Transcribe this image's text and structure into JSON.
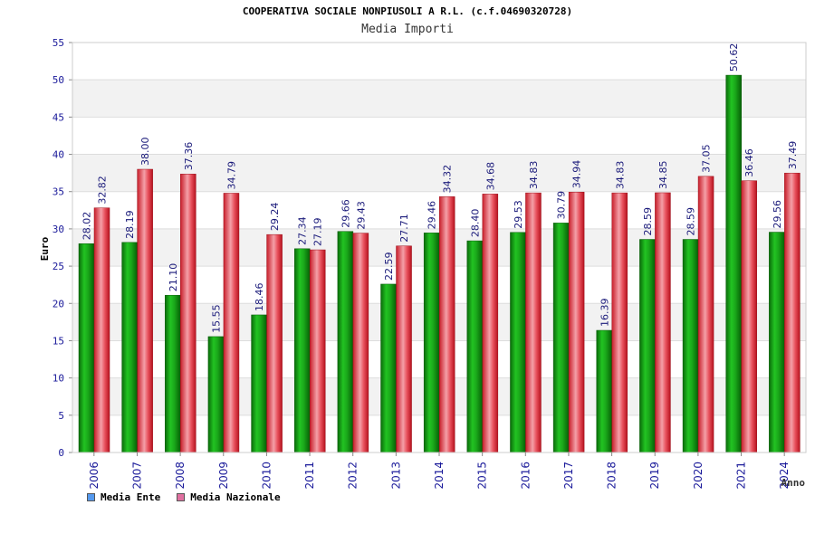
{
  "chart_data": {
    "type": "bar",
    "title": "COOPERATIVA SOCIALE NONPIUSOLI A R.L. (c.f.04690320728)",
    "subtitle": "Media Importi",
    "xlabel": "Anno",
    "ylabel": "Euro",
    "ylim": [
      0,
      55
    ],
    "yticks": [
      "0",
      "5",
      "10",
      "15",
      "20",
      "25",
      "30",
      "35",
      "40",
      "45",
      "50",
      "55"
    ],
    "grid": true,
    "legend_position": "bottom-left",
    "categories": [
      "2006",
      "2007",
      "2008",
      "2009",
      "2010",
      "2011",
      "2012",
      "2013",
      "2014",
      "2015",
      "2016",
      "2017",
      "2018",
      "2019",
      "2020",
      "2021",
      "2024"
    ],
    "series": [
      {
        "name": "Media Ente",
        "color": "#1fa81f",
        "swatch_color": "#5599ee",
        "values": [
          28.02,
          28.19,
          21.1,
          15.55,
          18.46,
          27.34,
          29.66,
          22.59,
          29.46,
          28.4,
          29.53,
          30.79,
          16.39,
          28.59,
          28.59,
          50.62,
          29.56
        ],
        "labels": [
          "28.02",
          "28.19",
          "21.10",
          "15.55",
          "18.46",
          "27.34",
          "29.66",
          "22.59",
          "29.46",
          "28.40",
          "29.53",
          "30.79",
          "16.39",
          "28.59",
          "28.59",
          "50.62",
          "29.56"
        ]
      },
      {
        "name": "Media Nazionale",
        "color": "#e0303c",
        "swatch_color": "#e070a0",
        "values": [
          32.82,
          38.0,
          37.36,
          34.79,
          29.24,
          27.19,
          29.43,
          27.71,
          34.32,
          34.68,
          34.83,
          34.94,
          34.83,
          34.85,
          37.05,
          36.46,
          37.49
        ],
        "labels": [
          "32.82",
          "38.00",
          "37.36",
          "34.79",
          "29.24",
          "27.19",
          "29.43",
          "27.71",
          "34.32",
          "34.68",
          "34.83",
          "34.94",
          "34.83",
          "34.85",
          "37.05",
          "36.46",
          "37.49"
        ]
      }
    ]
  }
}
